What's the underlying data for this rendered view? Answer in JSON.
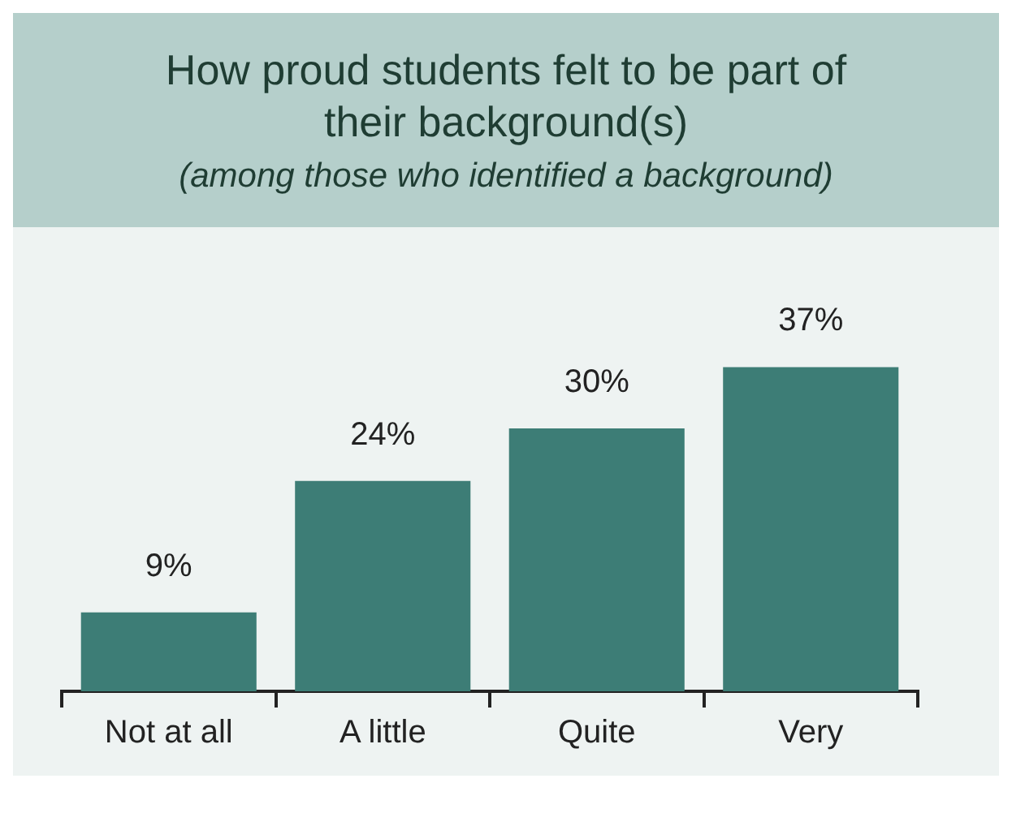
{
  "chart_data": {
    "type": "bar",
    "title": "How proud students felt to be part of their background(s)",
    "subtitle": "(among those who identified a background)",
    "categories": [
      "Not at all",
      "A little",
      "Quite",
      "Very"
    ],
    "values": [
      9,
      24,
      30,
      37
    ],
    "value_labels": [
      "9%",
      "24%",
      "30%",
      "37%"
    ],
    "color": "#3d7d76",
    "grid": false,
    "legend": false
  }
}
